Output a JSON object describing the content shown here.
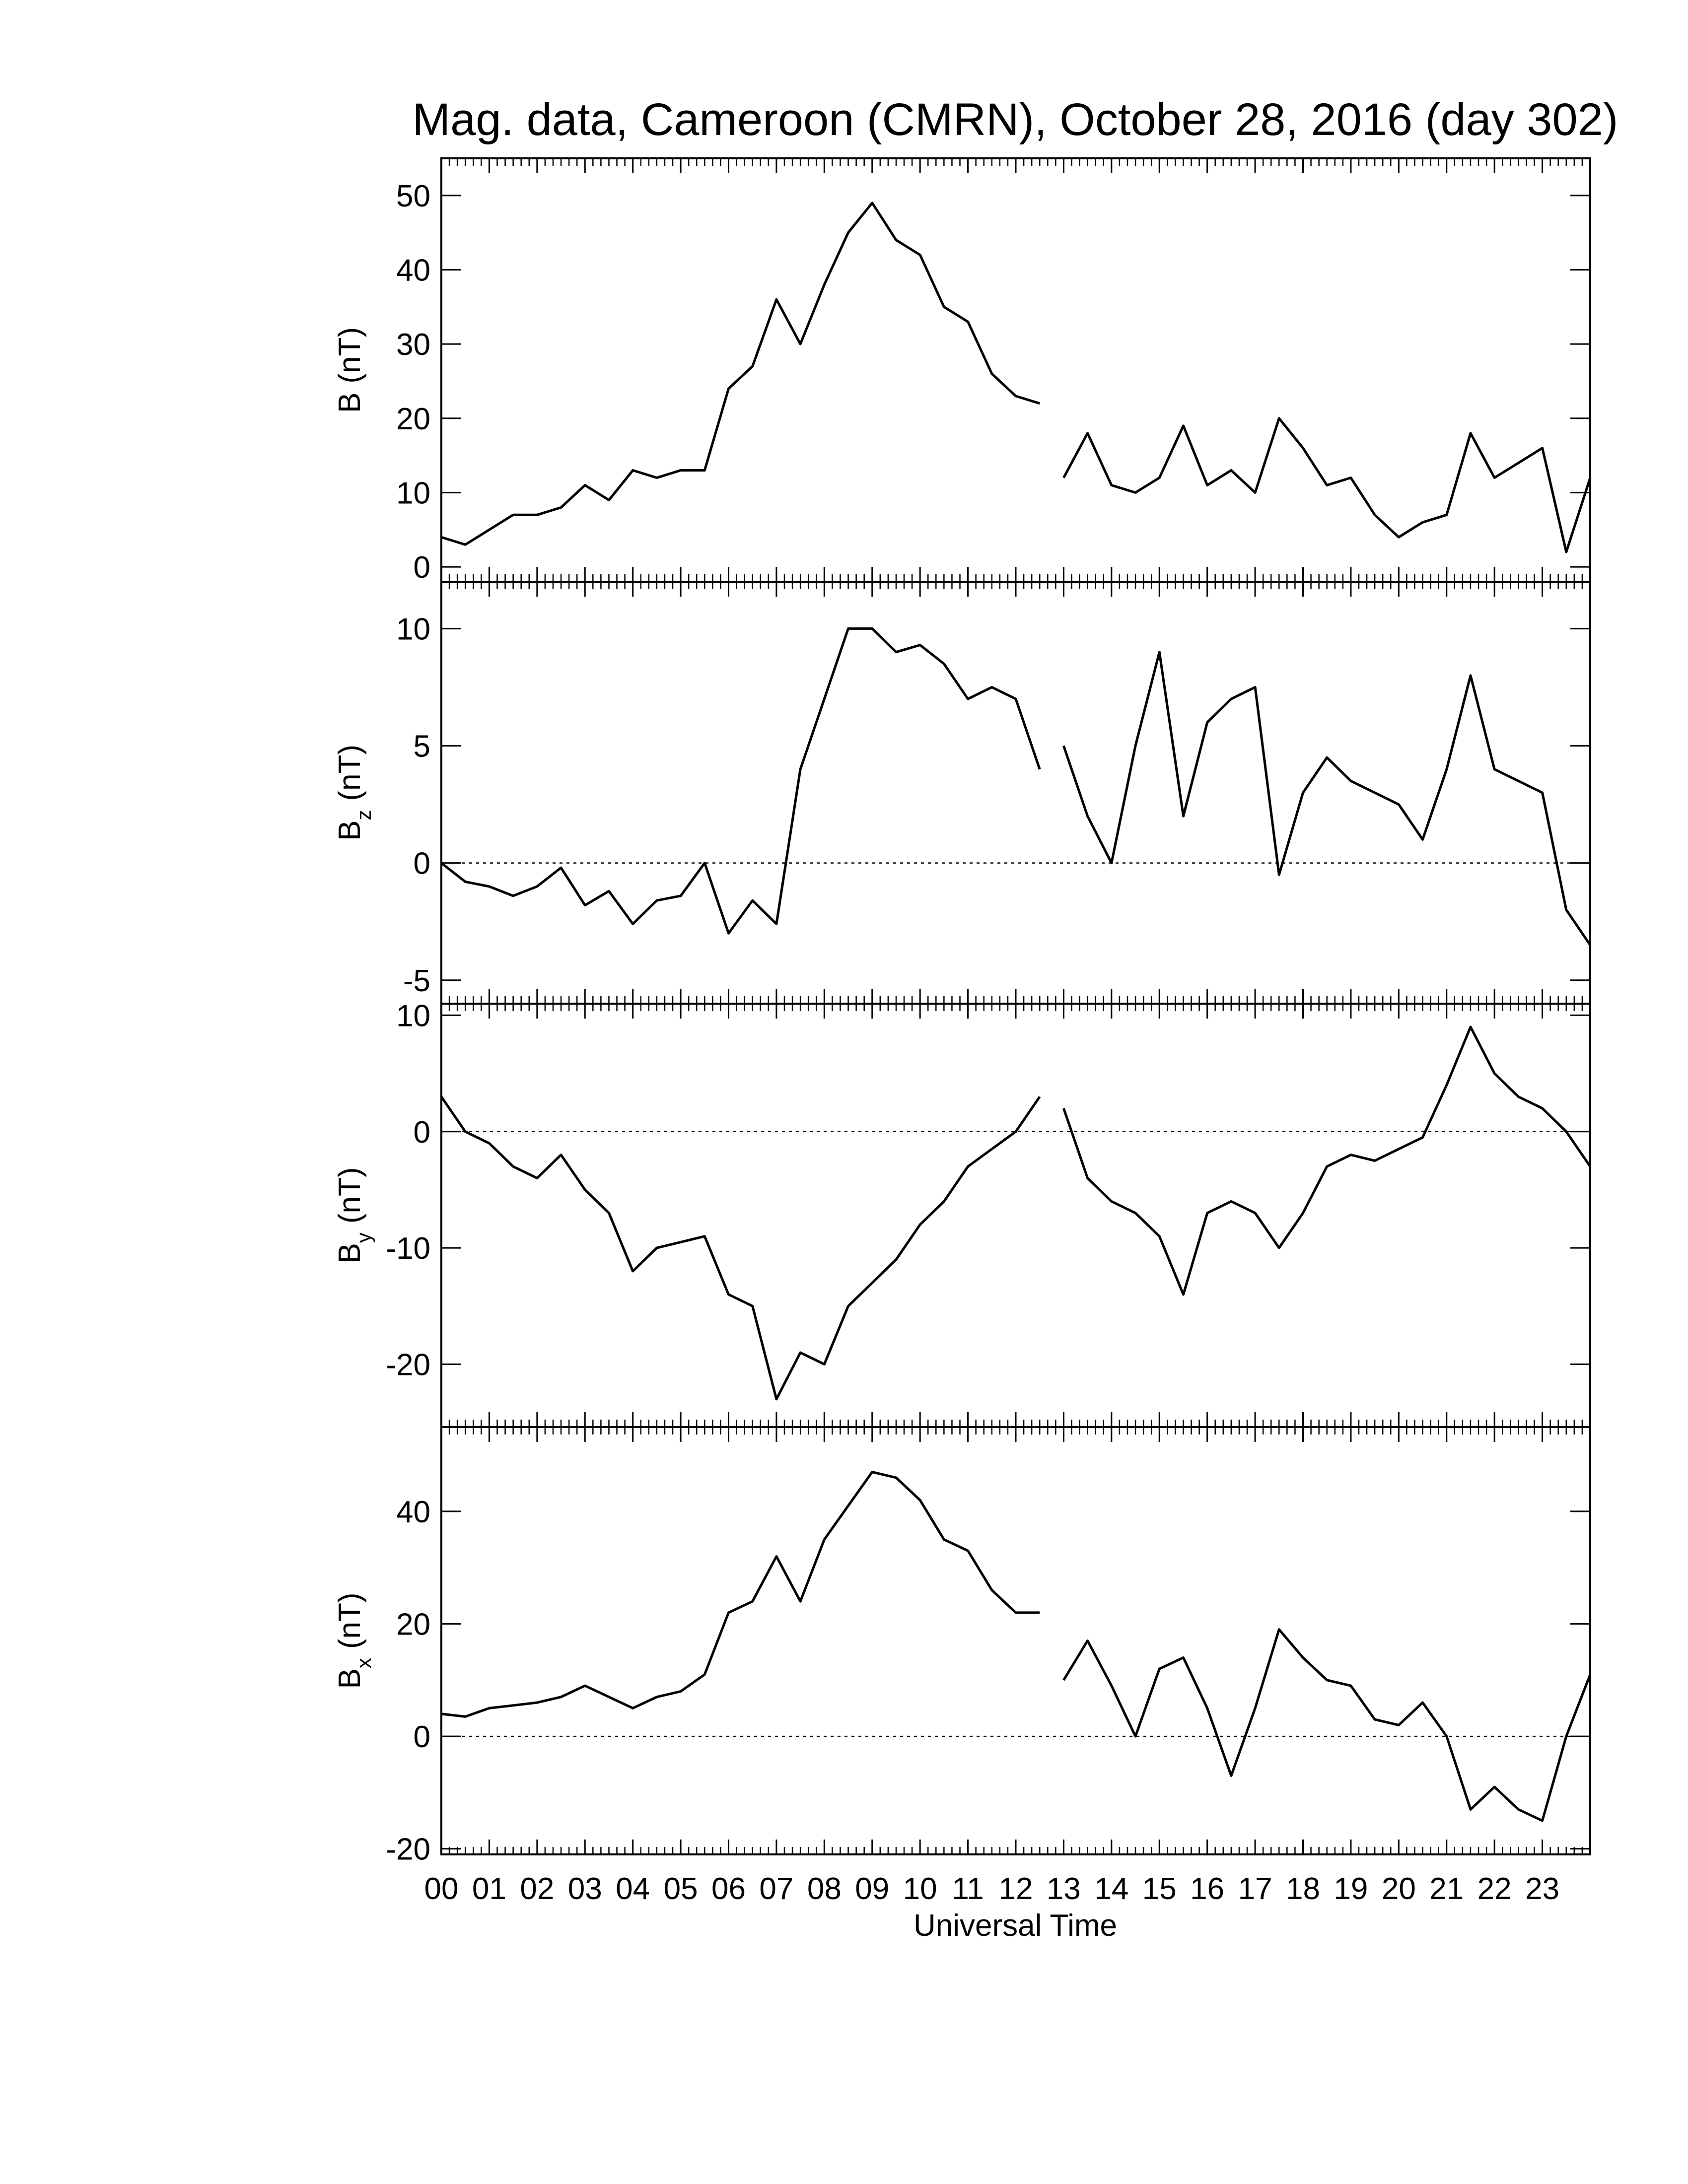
{
  "chart_data": [
    {
      "type": "line",
      "title": "Mag. data, Cameroon (CMRN), October 28, 2016 (day 302)",
      "ylabel": "B",
      "ylabel_unit": "(nT)",
      "x": [
        0,
        0.5,
        1,
        1.5,
        2,
        2.5,
        3,
        3.5,
        4,
        4.5,
        5,
        5.5,
        6,
        6.5,
        7,
        7.5,
        8,
        8.5,
        9,
        9.5,
        10,
        10.5,
        11,
        11.5,
        12,
        12.5,
        12.75,
        13,
        13.5,
        14,
        14.5,
        15,
        15.5,
        16,
        16.5,
        17,
        17.5,
        18,
        18.5,
        19,
        19.5,
        20,
        20.5,
        21,
        21.5,
        22,
        22.5,
        23,
        23.5,
        24
      ],
      "series": [
        {
          "color": "#000000",
          "values": [
            4,
            3,
            5,
            7,
            7,
            8,
            11,
            9,
            13,
            12,
            13,
            13,
            24,
            27,
            36,
            30,
            38,
            45,
            49,
            44,
            42,
            35,
            33,
            26,
            23,
            22,
            null,
            12,
            18,
            11,
            10,
            12,
            19,
            11,
            13,
            10,
            20,
            16,
            11,
            12,
            7,
            4,
            6,
            7,
            18,
            12,
            14,
            16,
            2,
            12
          ]
        }
      ],
      "xlim": [
        0,
        24
      ],
      "ylim": [
        -2,
        55
      ],
      "yticks": [
        0,
        10,
        20,
        30,
        40,
        50
      ],
      "zero_line": false
    },
    {
      "type": "line",
      "ylabel": "B",
      "ylabel_sub": "z",
      "ylabel_unit": "(nT)",
      "x": [
        0,
        0.5,
        1,
        1.5,
        2,
        2.5,
        3,
        3.5,
        4,
        4.5,
        5,
        5.5,
        6,
        6.5,
        7,
        7.5,
        8,
        8.5,
        9,
        9.5,
        10,
        10.5,
        11,
        11.5,
        12,
        12.5,
        12.75,
        13,
        13.5,
        14,
        14.5,
        15,
        15.5,
        16,
        16.5,
        17,
        17.5,
        18,
        18.5,
        19,
        19.5,
        20,
        20.5,
        21,
        21.5,
        22,
        22.5,
        23,
        23.5,
        24
      ],
      "series": [
        {
          "color": "#000000",
          "values": [
            0,
            -0.8,
            -1,
            -1.4,
            -1,
            -0.2,
            -1.8,
            -1.2,
            -2.6,
            -1.6,
            -1.4,
            0,
            -3,
            -1.6,
            -2.6,
            4,
            7,
            10,
            10,
            9,
            9.3,
            8.5,
            7,
            7.5,
            7,
            4,
            null,
            5,
            2,
            0,
            5,
            9,
            2,
            6,
            7,
            7.5,
            -0.5,
            3,
            4.5,
            3.5,
            3,
            2.5,
            1,
            4,
            8,
            4,
            3.5,
            3,
            -2,
            -3.5
          ]
        }
      ],
      "xlim": [
        0,
        24
      ],
      "ylim": [
        -6,
        12
      ],
      "yticks": [
        -5,
        0,
        5,
        10
      ],
      "zero_line": true
    },
    {
      "type": "line",
      "ylabel": "B",
      "ylabel_sub": "y",
      "ylabel_unit": "(nT)",
      "x": [
        0,
        0.5,
        1,
        1.5,
        2,
        2.5,
        3,
        3.5,
        4,
        4.5,
        5,
        5.5,
        6,
        6.5,
        7,
        7.5,
        8,
        8.5,
        9,
        9.5,
        10,
        10.5,
        11,
        11.5,
        12,
        12.5,
        12.75,
        13,
        13.5,
        14,
        14.5,
        15,
        15.5,
        16,
        16.5,
        17,
        17.5,
        18,
        18.5,
        19,
        19.5,
        20,
        20.5,
        21,
        21.5,
        22,
        22.5,
        23,
        23.5,
        24
      ],
      "series": [
        {
          "color": "#000000",
          "values": [
            3,
            0,
            -1,
            -3,
            -4,
            -2,
            -5,
            -7,
            -12,
            -10,
            -9.5,
            -9,
            -14,
            -15,
            -23,
            -19,
            -20,
            -15,
            -13,
            -11,
            -8,
            -6,
            -3,
            -1.5,
            0,
            3,
            null,
            2,
            -4,
            -6,
            -7,
            -9,
            -14,
            -7,
            -6,
            -7,
            -10,
            -7,
            -3,
            -2,
            -2.5,
            -1.5,
            -0.5,
            4,
            9,
            5,
            3,
            2,
            0,
            -3
          ]
        }
      ],
      "xlim": [
        0,
        24
      ],
      "ylim": [
        -25.4,
        11
      ],
      "yticks": [
        -20,
        -10,
        0,
        10
      ],
      "zero_line": true
    },
    {
      "type": "line",
      "ylabel": "B",
      "ylabel_sub": "x",
      "ylabel_unit": "(nT)",
      "xlabel": "Universal Time",
      "x": [
        0,
        0.5,
        1,
        1.5,
        2,
        2.5,
        3,
        3.5,
        4,
        4.5,
        5,
        5.5,
        6,
        6.5,
        7,
        7.5,
        8,
        8.5,
        9,
        9.5,
        10,
        10.5,
        11,
        11.5,
        12,
        12.5,
        12.75,
        13,
        13.5,
        14,
        14.5,
        15,
        15.5,
        16,
        16.5,
        17,
        17.5,
        18,
        18.5,
        19,
        19.5,
        20,
        20.5,
        21,
        21.5,
        22,
        22.5,
        23,
        23.5,
        24
      ],
      "series": [
        {
          "color": "#000000",
          "values": [
            4,
            3.5,
            5,
            5.5,
            6,
            7,
            9,
            7,
            5,
            7,
            8,
            11,
            22,
            24,
            32,
            24,
            35,
            41,
            47,
            46,
            42,
            35,
            33,
            26,
            22,
            22,
            null,
            10,
            17,
            9,
            0,
            12,
            14,
            5,
            -7,
            5,
            19,
            14,
            10,
            9,
            3,
            2,
            6,
            0,
            -13,
            -9,
            -13,
            -15,
            0,
            11
          ]
        }
      ],
      "xlim": [
        0,
        24
      ],
      "ylim": [
        -21,
        55
      ],
      "yticks": [
        -20,
        0,
        20,
        40
      ],
      "zero_line": true,
      "xticks": [
        {
          "value": 0,
          "label": "00"
        },
        {
          "value": 1,
          "label": "01"
        },
        {
          "value": 2,
          "label": "02"
        },
        {
          "value": 3,
          "label": "03"
        },
        {
          "value": 4,
          "label": "04"
        },
        {
          "value": 5,
          "label": "05"
        },
        {
          "value": 6,
          "label": "06"
        },
        {
          "value": 7,
          "label": "07"
        },
        {
          "value": 8,
          "label": "08"
        },
        {
          "value": 9,
          "label": "09"
        },
        10,
        11,
        12,
        13,
        14,
        15,
        16,
        17,
        18,
        19,
        20,
        21,
        22,
        23
      ]
    }
  ]
}
